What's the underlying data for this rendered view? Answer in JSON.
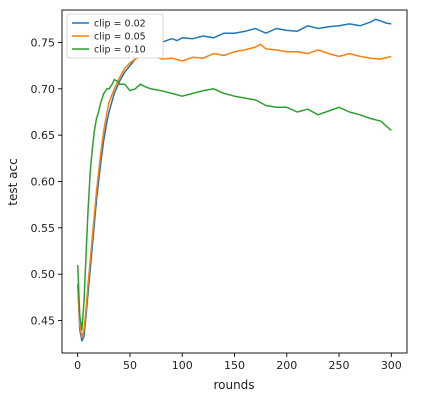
{
  "chart_data": {
    "type": "line",
    "title": "",
    "xlabel": "rounds",
    "ylabel": "test acc",
    "xlim": [
      -15,
      315
    ],
    "ylim": [
      0.415,
      0.785
    ],
    "xticks": [
      0,
      50,
      100,
      150,
      200,
      250,
      300
    ],
    "yticks": [
      0.45,
      0.5,
      0.55,
      0.6,
      0.65,
      0.7,
      0.75
    ],
    "ytick_labels": [
      "0.45",
      "0.50",
      "0.55",
      "0.60",
      "0.65",
      "0.70",
      "0.75"
    ],
    "grid": false,
    "legend_position": "top-left",
    "series": [
      {
        "name": "clip = 0.02",
        "color": "#1f77b4",
        "x": [
          0,
          2,
          4,
          6,
          8,
          10,
          12,
          14,
          16,
          18,
          20,
          22,
          25,
          28,
          30,
          35,
          40,
          45,
          50,
          55,
          60,
          65,
          70,
          75,
          80,
          85,
          90,
          95,
          100,
          110,
          120,
          130,
          140,
          150,
          160,
          170,
          180,
          190,
          200,
          210,
          220,
          230,
          240,
          250,
          260,
          270,
          280,
          285,
          290,
          295,
          300
        ],
        "values": [
          0.49,
          0.44,
          0.428,
          0.433,
          0.455,
          0.48,
          0.505,
          0.53,
          0.555,
          0.58,
          0.6,
          0.62,
          0.645,
          0.665,
          0.675,
          0.695,
          0.708,
          0.718,
          0.725,
          0.732,
          0.738,
          0.742,
          0.745,
          0.748,
          0.75,
          0.752,
          0.754,
          0.752,
          0.755,
          0.754,
          0.757,
          0.755,
          0.76,
          0.76,
          0.762,
          0.765,
          0.76,
          0.765,
          0.763,
          0.762,
          0.768,
          0.765,
          0.767,
          0.768,
          0.77,
          0.768,
          0.772,
          0.775,
          0.773,
          0.771,
          0.77
        ]
      },
      {
        "name": "clip = 0.05",
        "color": "#ff7f0e",
        "x": [
          0,
          2,
          4,
          6,
          8,
          10,
          12,
          14,
          16,
          18,
          20,
          22,
          25,
          28,
          30,
          35,
          40,
          45,
          50,
          55,
          60,
          65,
          70,
          75,
          80,
          90,
          100,
          110,
          120,
          130,
          140,
          150,
          160,
          170,
          175,
          180,
          190,
          200,
          210,
          220,
          230,
          240,
          250,
          260,
          270,
          280,
          290,
          300
        ],
        "values": [
          0.49,
          0.445,
          0.432,
          0.44,
          0.462,
          0.49,
          0.515,
          0.54,
          0.565,
          0.59,
          0.61,
          0.63,
          0.655,
          0.675,
          0.685,
          0.7,
          0.712,
          0.722,
          0.728,
          0.732,
          0.735,
          0.738,
          0.74,
          0.735,
          0.732,
          0.733,
          0.73,
          0.734,
          0.733,
          0.738,
          0.736,
          0.74,
          0.742,
          0.745,
          0.748,
          0.743,
          0.742,
          0.74,
          0.74,
          0.738,
          0.742,
          0.738,
          0.735,
          0.738,
          0.735,
          0.733,
          0.732,
          0.735
        ]
      },
      {
        "name": "clip = 0.10",
        "color": "#2ca02c",
        "x": [
          0,
          2,
          4,
          6,
          8,
          10,
          12,
          14,
          16,
          18,
          20,
          22,
          25,
          28,
          30,
          33,
          35,
          38,
          40,
          45,
          50,
          55,
          60,
          65,
          70,
          80,
          90,
          100,
          110,
          120,
          130,
          140,
          150,
          160,
          170,
          180,
          190,
          200,
          210,
          220,
          230,
          240,
          250,
          260,
          270,
          280,
          290,
          295,
          300
        ],
        "values": [
          0.51,
          0.455,
          0.44,
          0.47,
          0.52,
          0.57,
          0.61,
          0.635,
          0.655,
          0.668,
          0.675,
          0.685,
          0.695,
          0.7,
          0.7,
          0.705,
          0.71,
          0.708,
          0.705,
          0.705,
          0.698,
          0.7,
          0.705,
          0.702,
          0.7,
          0.698,
          0.695,
          0.692,
          0.695,
          0.698,
          0.7,
          0.695,
          0.692,
          0.69,
          0.688,
          0.682,
          0.68,
          0.68,
          0.675,
          0.678,
          0.672,
          0.676,
          0.68,
          0.675,
          0.672,
          0.668,
          0.665,
          0.66,
          0.655
        ]
      }
    ]
  }
}
